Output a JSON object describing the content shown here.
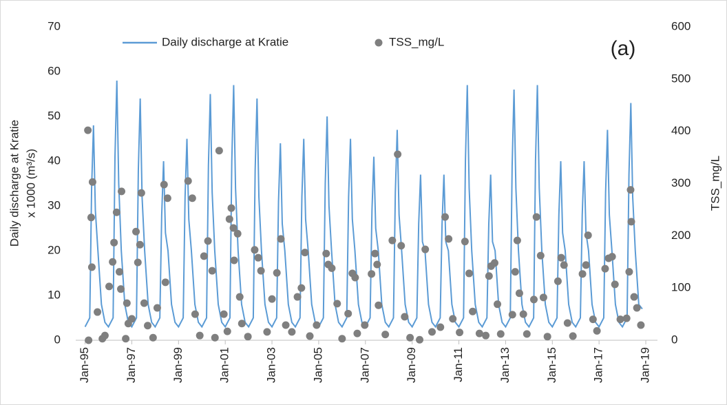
{
  "chart_data": {
    "type": "line",
    "annotation": "(a)",
    "ylabel": [
      "Daily discharge at Kratie",
      "x 1000 (m³/s)"
    ],
    "y2label": "TSS_mg/L",
    "xlim": [
      1994.6,
      2019.5
    ],
    "xticks": [
      {
        "value": 1995,
        "label": "Jan-95"
      },
      {
        "value": 1997,
        "label": "Jan-97"
      },
      {
        "value": 1999,
        "label": "Jan-99"
      },
      {
        "value": 2001,
        "label": "Jan-01"
      },
      {
        "value": 2003,
        "label": "Jan-03"
      },
      {
        "value": 2005,
        "label": "Jan-05"
      },
      {
        "value": 2007,
        "label": "Jan-07"
      },
      {
        "value": 2009,
        "label": "Jan-09"
      },
      {
        "value": 2011,
        "label": "Jan-11"
      },
      {
        "value": 2013,
        "label": "Jan-13"
      },
      {
        "value": 2015,
        "label": "Jan-15"
      },
      {
        "value": 2017,
        "label": "Jan-17"
      },
      {
        "value": 2019,
        "label": "Jan-19"
      }
    ],
    "ylim": [
      0,
      70
    ],
    "yticks": [
      0,
      10,
      20,
      30,
      40,
      50,
      60,
      70
    ],
    "y2lim": [
      0,
      600
    ],
    "y2ticks": [
      0,
      100,
      200,
      300,
      400,
      500,
      600
    ],
    "grid": false,
    "series": [
      {
        "name": "Daily discharge at Kratie",
        "type": "line",
        "color": "#5b9bd5",
        "x": [
          1995,
          1995.2,
          1995.28,
          1995.36,
          1995.44,
          1995.55,
          1995.7,
          1995.85,
          1996,
          1996.2,
          1996.28,
          1996.36,
          1996.44,
          1996.55,
          1996.7,
          1996.85,
          1997,
          1997.2,
          1997.28,
          1997.36,
          1997.44,
          1997.55,
          1997.7,
          1997.85,
          1998,
          1998.2,
          1998.28,
          1998.36,
          1998.44,
          1998.55,
          1998.7,
          1998.85,
          1999,
          1999.2,
          1999.28,
          1999.36,
          1999.44,
          1999.55,
          1999.7,
          1999.85,
          2000,
          2000.2,
          2000.28,
          2000.36,
          2000.44,
          2000.55,
          2000.7,
          2000.85,
          2001,
          2001.2,
          2001.28,
          2001.36,
          2001.44,
          2001.55,
          2001.7,
          2001.85,
          2002,
          2002.2,
          2002.28,
          2002.36,
          2002.44,
          2002.55,
          2002.7,
          2002.85,
          2003,
          2003.2,
          2003.28,
          2003.36,
          2003.44,
          2003.55,
          2003.7,
          2003.85,
          2004,
          2004.2,
          2004.28,
          2004.36,
          2004.44,
          2004.55,
          2004.7,
          2004.85,
          2005,
          2005.2,
          2005.28,
          2005.36,
          2005.44,
          2005.55,
          2005.7,
          2005.85,
          2006,
          2006.2,
          2006.28,
          2006.36,
          2006.44,
          2006.55,
          2006.7,
          2006.85,
          2007,
          2007.2,
          2007.28,
          2007.36,
          2007.44,
          2007.55,
          2007.7,
          2007.85,
          2008,
          2008.2,
          2008.28,
          2008.36,
          2008.44,
          2008.55,
          2008.7,
          2008.85,
          2009,
          2009.2,
          2009.28,
          2009.36,
          2009.44,
          2009.55,
          2009.7,
          2009.85,
          2010,
          2010.2,
          2010.28,
          2010.36,
          2010.44,
          2010.55,
          2010.7,
          2010.85,
          2011,
          2011.2,
          2011.28,
          2011.36,
          2011.44,
          2011.55,
          2011.7,
          2011.85,
          2012,
          2012.2,
          2012.28,
          2012.36,
          2012.44,
          2012.55,
          2012.7,
          2012.85,
          2013,
          2013.2,
          2013.28,
          2013.36,
          2013.44,
          2013.55,
          2013.7,
          2013.85,
          2014,
          2014.2,
          2014.28,
          2014.36,
          2014.44,
          2014.55,
          2014.7,
          2014.85,
          2015,
          2015.2,
          2015.28,
          2015.36,
          2015.44,
          2015.55,
          2015.7,
          2015.85,
          2016,
          2016.2,
          2016.28,
          2016.36,
          2016.44,
          2016.55,
          2016.7,
          2016.85,
          2017,
          2017.2,
          2017.28,
          2017.36,
          2017.44,
          2017.55,
          2017.7,
          2017.85,
          2018,
          2018.2,
          2018.28,
          2018.36,
          2018.44,
          2018.55,
          2018.7,
          2018.85
        ],
        "values": [
          3,
          5,
          34,
          48,
          29,
          20,
          8,
          4,
          3,
          5,
          41,
          58,
          35,
          20,
          8,
          4,
          3,
          5,
          38,
          54,
          32,
          20,
          8,
          4,
          3,
          5,
          28,
          40,
          24,
          20,
          8,
          4,
          3,
          5,
          32,
          45,
          27,
          20,
          8,
          4,
          3,
          5,
          39,
          55,
          33,
          20,
          8,
          4,
          3,
          5,
          40,
          57,
          34,
          20,
          8,
          4,
          3,
          5,
          38,
          54,
          32,
          20,
          8,
          4,
          3,
          5,
          31,
          44,
          26,
          20,
          8,
          4,
          3,
          5,
          32,
          45,
          27,
          20,
          8,
          4,
          3,
          5,
          35,
          50,
          30,
          20,
          8,
          4,
          3,
          5,
          32,
          45,
          27,
          20,
          8,
          4,
          3,
          5,
          29,
          41,
          25,
          20,
          8,
          4,
          3,
          5,
          33,
          47,
          28,
          20,
          8,
          4,
          3,
          5,
          26,
          37,
          22,
          20,
          8,
          4,
          3,
          5,
          26,
          37,
          22,
          20,
          8,
          4,
          3,
          5,
          40,
          57,
          34,
          20,
          8,
          4,
          3,
          5,
          26,
          37,
          22,
          20,
          8,
          4,
          3,
          5,
          39,
          56,
          34,
          20,
          8,
          4,
          3,
          5,
          40,
          57,
          34,
          20,
          8,
          4,
          3,
          5,
          28,
          40,
          24,
          20,
          8,
          4,
          3,
          5,
          28,
          40,
          24,
          20,
          8,
          4,
          3,
          5,
          33,
          47,
          28,
          20,
          8,
          4,
          3,
          5,
          37,
          53,
          32,
          20,
          8,
          7
        ]
      },
      {
        "name": "TSS_mg/L",
        "type": "scatter",
        "axis": "y2",
        "color": "#7f7f7f",
        "x": [
          1995.15,
          1995.12,
          1995.26,
          1995.32,
          1995.29,
          1995.53,
          1995.74,
          1995.85,
          1996.03,
          1996.18,
          1996.24,
          1996.35,
          1996.56,
          1996.53,
          1996.47,
          1996.74,
          1996.79,
          1996.85,
          1997.0,
          1997.18,
          1997.26,
          1997.35,
          1997.41,
          1997.53,
          1997.68,
          1997.91,
          1998.09,
          1998.38,
          1998.53,
          1998.44,
          1999.41,
          1999.59,
          1999.71,
          1999.91,
          2000.09,
          2000.26,
          2000.44,
          2000.56,
          2000.74,
          2000.94,
          2001.09,
          2001.18,
          2001.26,
          2001.35,
          2001.53,
          2001.62,
          2001.38,
          2001.71,
          2001.97,
          2002.26,
          2002.41,
          2002.53,
          2002.79,
          2003.0,
          2003.21,
          2003.38,
          2003.59,
          2003.85,
          2004.09,
          2004.26,
          2004.41,
          2004.62,
          2004.91,
          2005.32,
          2005.41,
          2005.56,
          2005.79,
          2006.0,
          2006.26,
          2006.44,
          2006.56,
          2006.65,
          2006.97,
          2007.26,
          2007.41,
          2007.5,
          2007.56,
          2007.85,
          2008.15,
          2008.38,
          2008.53,
          2008.68,
          2008.91,
          2009.32,
          2009.56,
          2009.85,
          2010.21,
          2010.41,
          2010.56,
          2010.74,
          2011.03,
          2011.26,
          2011.44,
          2011.59,
          2011.88,
          2012.15,
          2012.29,
          2012.38,
          2012.53,
          2012.65,
          2012.79,
          2013.29,
          2013.41,
          2013.5,
          2013.59,
          2013.76,
          2013.91,
          2014.21,
          2014.32,
          2014.5,
          2014.62,
          2014.79,
          2015.24,
          2015.38,
          2015.5,
          2015.65,
          2015.88,
          2016.29,
          2016.44,
          2016.53,
          2016.74,
          2016.91,
          2017.26,
          2017.41,
          2017.56,
          2017.68,
          2017.91,
          2018.18,
          2018.29,
          2018.35,
          2018.38,
          2018.5,
          2018.62,
          2018.79
        ],
        "values": [
          0,
          402,
          235,
          303,
          140,
          54,
          3,
          9,
          103,
          150,
          187,
          245,
          285,
          98,
          131,
          3,
          71,
          32,
          41,
          208,
          149,
          183,
          282,
          71,
          28,
          5,
          62,
          298,
          272,
          111,
          305,
          272,
          50,
          9,
          161,
          190,
          133,
          5,
          363,
          50,
          17,
          232,
          253,
          215,
          204,
          83,
          153,
          32,
          7,
          173,
          158,
          133,
          16,
          79,
          129,
          194,
          29,
          16,
          83,
          100,
          168,
          8,
          29,
          166,
          145,
          138,
          70,
          3,
          51,
          128,
          120,
          13,
          29,
          127,
          166,
          145,
          67,
          11,
          191,
          356,
          181,
          45,
          5,
          1,
          174,
          16,
          25,
          236,
          194,
          41,
          15,
          189,
          128,
          55,
          13,
          9,
          123,
          142,
          148,
          69,
          12,
          49,
          131,
          191,
          90,
          50,
          12,
          78,
          236,
          162,
          82,
          7,
          113,
          158,
          144,
          33,
          8,
          127,
          144,
          201,
          40,
          18,
          137,
          157,
          160,
          107,
          40,
          42,
          131,
          288,
          227,
          83,
          62,
          29
        ]
      }
    ]
  }
}
